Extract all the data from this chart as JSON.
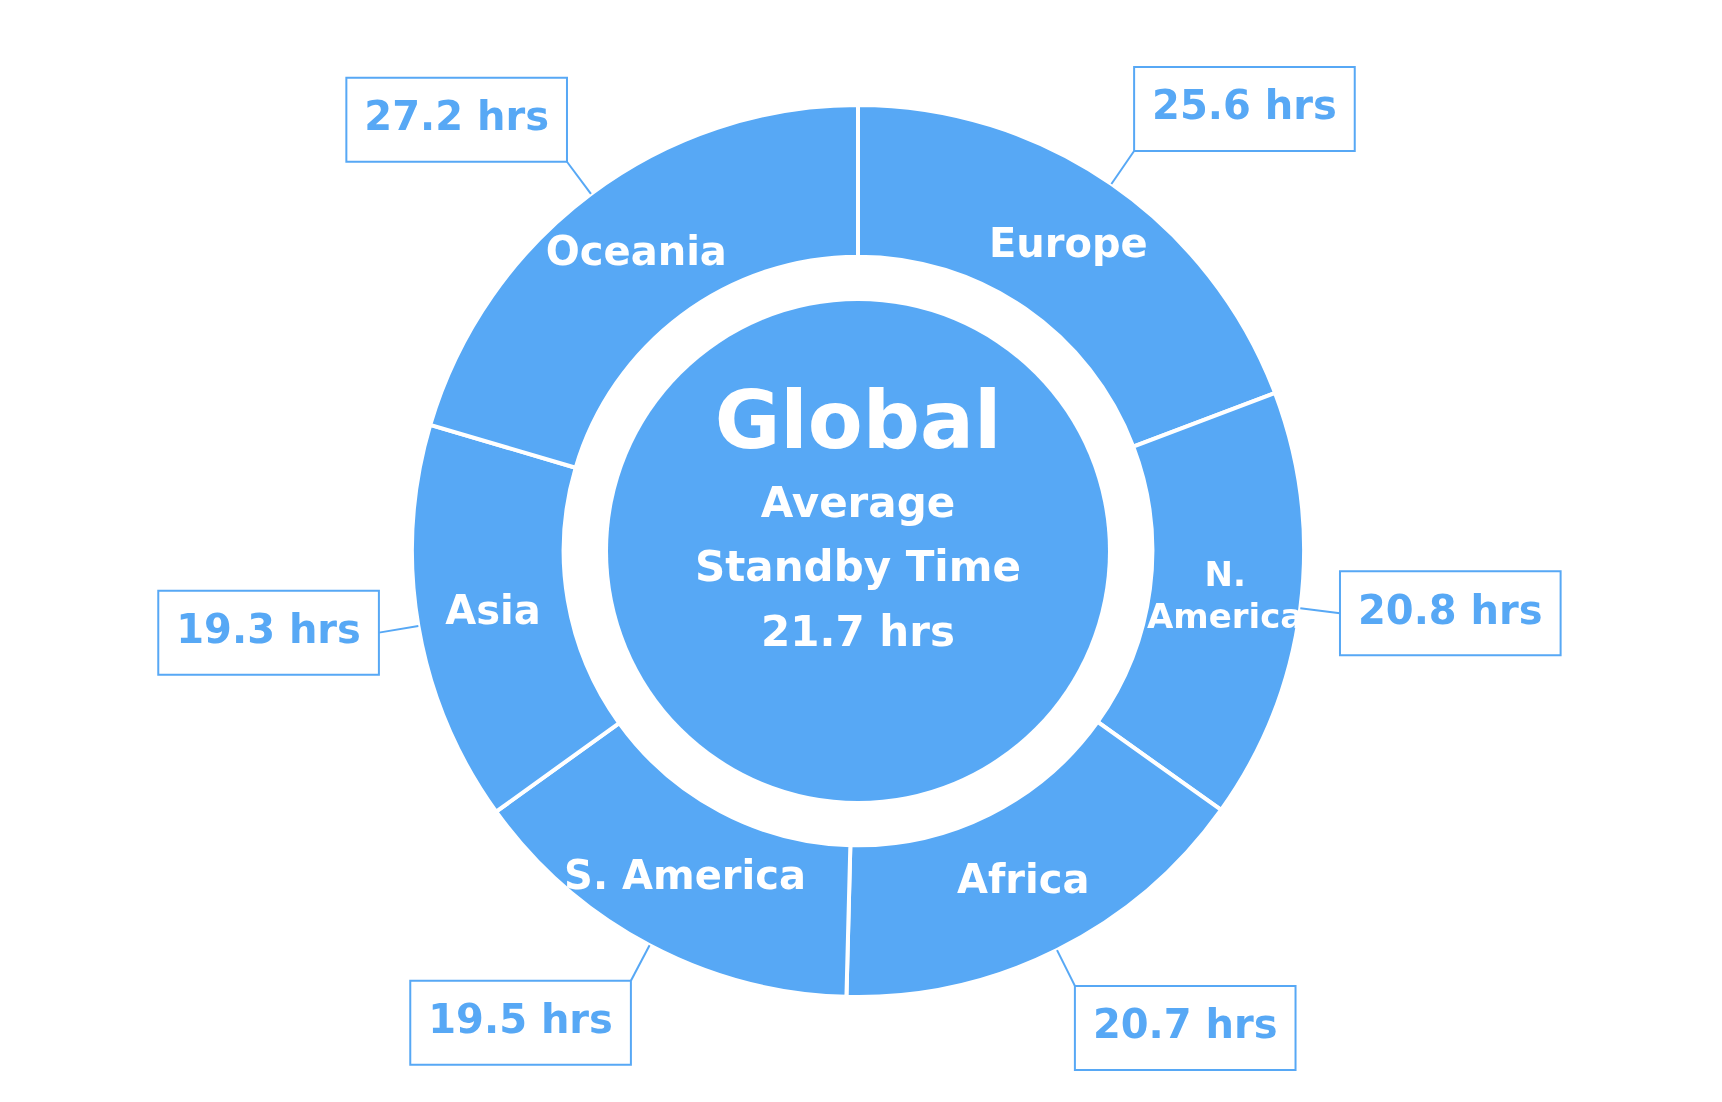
{
  "chart_data": {
    "type": "donut",
    "title": "Global",
    "subtitle": "Average Standby Time",
    "annotations": [
      "21.7 hrs"
    ],
    "categories": [
      "Europe",
      "N. America",
      "Africa",
      "S. America",
      "Asia",
      "Oceania"
    ],
    "values": [
      25.6,
      20.8,
      20.7,
      19.5,
      19.3,
      27.2
    ],
    "colors": [
      "#57a8f5",
      "#57a8f5",
      "#57a8f5",
      "#57a8f5",
      "#57a8f5",
      "#57a8f5"
    ],
    "value_labels": [
      "25.6 hrs",
      "20.8 hrs",
      "20.7 hrs",
      "19.5 hrs",
      "19.3 hrs",
      "27.2 hrs"
    ]
  }
}
